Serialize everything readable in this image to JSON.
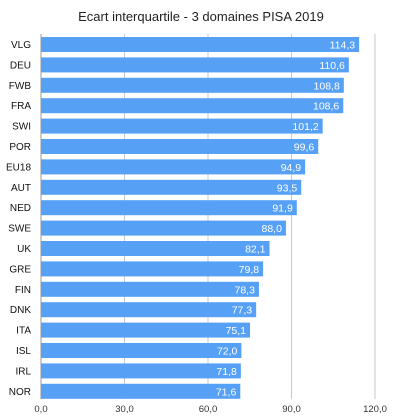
{
  "chart_data": {
    "type": "bar",
    "orientation": "horizontal",
    "title": "Ecart interquartile - 3 domaines PISA 2019",
    "categories": [
      "VLG",
      "DEU",
      "FWB",
      "FRA",
      "SWI",
      "POR",
      "EU18",
      "AUT",
      "NED",
      "SWE",
      "UK",
      "GRE",
      "FIN",
      "DNK",
      "ITA",
      "ISL",
      "IRL",
      "NOR"
    ],
    "values": [
      114.3,
      110.6,
      108.8,
      108.6,
      101.2,
      99.6,
      94.9,
      93.5,
      91.9,
      88.0,
      82.1,
      79.8,
      78.3,
      77.3,
      75.1,
      72.0,
      71.8,
      71.6
    ],
    "value_labels": [
      "114,3",
      "110,6",
      "108,8",
      "108,6",
      "101,2",
      "99,6",
      "94,9",
      "93,5",
      "91,9",
      "88,0",
      "82,1",
      "79,8",
      "78,3",
      "77,3",
      "75,1",
      "72,0",
      "71,8",
      "71,6"
    ],
    "xlim": [
      0,
      120
    ],
    "xticks": [
      0,
      30,
      60,
      90,
      120
    ],
    "xtick_labels": [
      "0,0",
      "30,0",
      "60,0",
      "90,0",
      "120,0"
    ],
    "grid": true,
    "bar_color": "#56a0f5",
    "grid_color": "#c8c8c8",
    "xlabel": "",
    "ylabel": ""
  }
}
